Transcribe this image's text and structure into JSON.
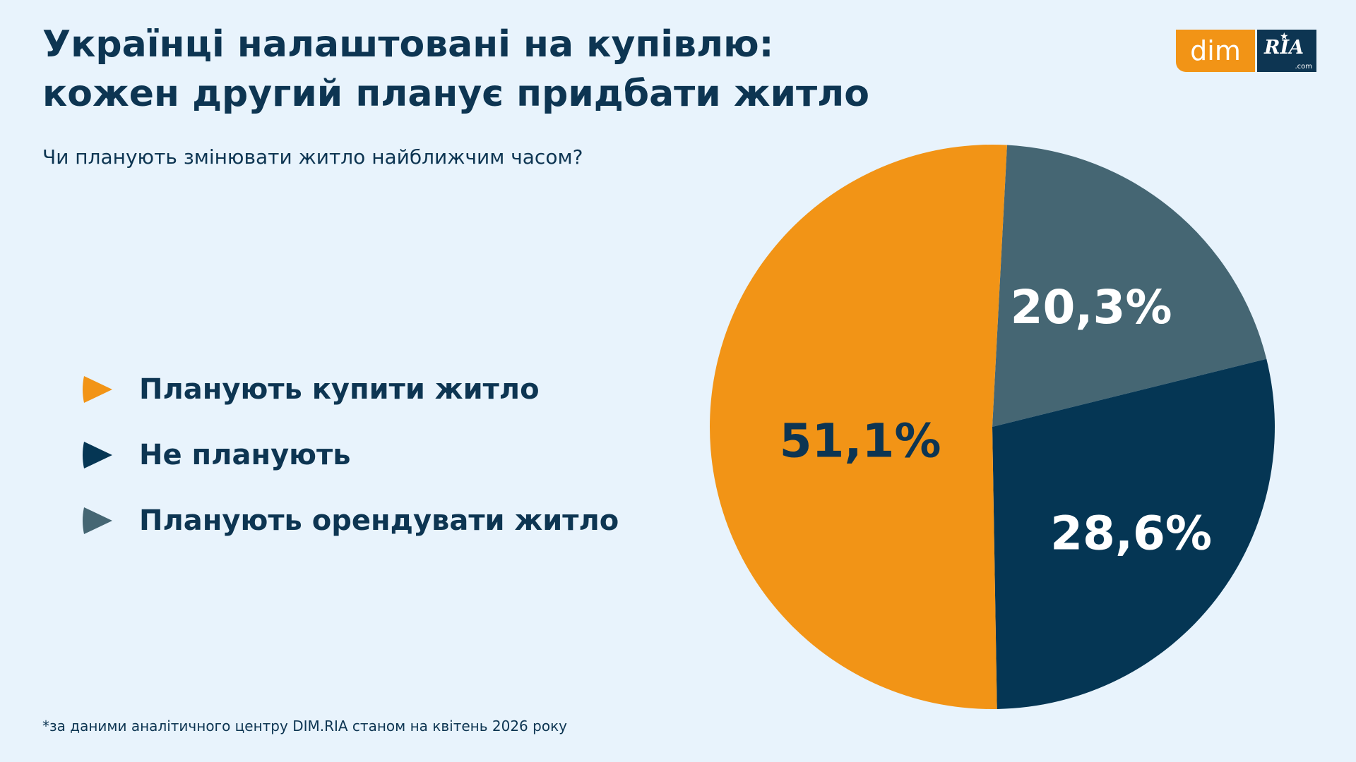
{
  "header": {
    "title_line1": "Українці налаштовані на купівлю:",
    "title_line2": "кожен другий планує придбати житло",
    "subtitle": "Чи планують змінювати житло найближчим часом?"
  },
  "logo": {
    "dim_text": "dim",
    "ria_text": "RIA",
    "ria_suffix": ".com"
  },
  "footnote": "*за даними аналітичного центру DIM.RIA станом на квітень 2026 року",
  "chart_data": {
    "type": "pie",
    "unit": "%",
    "slices": [
      {
        "label": "Планують купити житло",
        "value": 51.1,
        "display": "51,1%",
        "color": "#f29416",
        "label_color": "#0d3552"
      },
      {
        "label": "Не планують",
        "value": 28.6,
        "display": "28,6%",
        "color": "#053654",
        "label_color": "#ffffff"
      },
      {
        "label": "Планують орендувати житло",
        "value": 20.3,
        "display": "20,3%",
        "color": "#456673",
        "label_color": "#ffffff"
      }
    ],
    "legend_position": "left"
  }
}
